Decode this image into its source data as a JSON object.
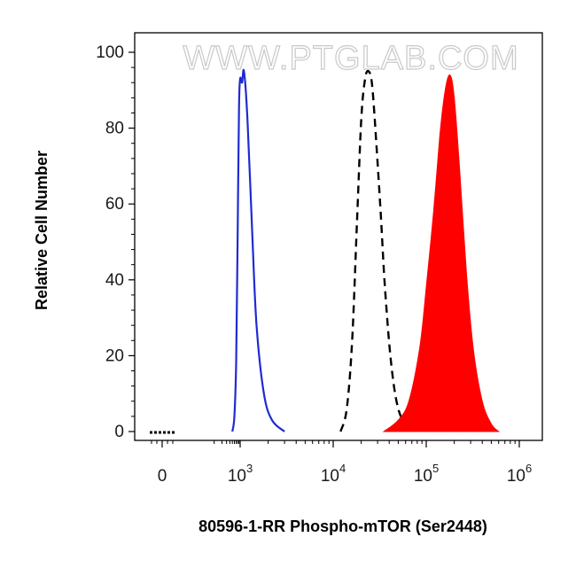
{
  "chart_data": {
    "type": "area",
    "watermark": "WWW.PTGLAB.COM",
    "xlabel": "80596-1-RR Phospho-mTOR (Ser2448)",
    "ylabel": "Relative Cell Number",
    "xscale": "biexponential",
    "ylim": [
      0,
      100
    ],
    "y_ticks": [
      "0",
      "20",
      "40",
      "60",
      "80",
      "100"
    ],
    "x_ticks": [
      {
        "value": 0,
        "base": "0",
        "exp": ""
      },
      {
        "value": 1000,
        "base": "10",
        "exp": "3"
      },
      {
        "value": 10000,
        "base": "10",
        "exp": "4"
      },
      {
        "value": 100000,
        "base": "10",
        "exp": "5"
      },
      {
        "value": 1000000,
        "base": "10",
        "exp": "6"
      }
    ],
    "grid": false,
    "legend": "none",
    "series": [
      {
        "style": "blue-solid-line",
        "color": "#1f2bd1",
        "x": [
          500,
          600,
          700,
          800,
          900,
          1000,
          1050,
          1100,
          1200,
          1350,
          1500,
          1800,
          2200,
          3000
        ],
        "y": [
          0,
          4,
          18,
          52,
          85,
          93,
          92,
          95,
          82,
          52,
          28,
          10,
          3,
          0
        ]
      },
      {
        "style": "black-dashed-line",
        "color": "#000000",
        "x": [
          12000,
          14000,
          16000,
          18000,
          20000,
          22000,
          24000,
          26000,
          28000,
          32000,
          36000,
          42000,
          50000,
          65000
        ],
        "y": [
          0,
          6,
          24,
          55,
          82,
          93,
          95,
          92,
          82,
          60,
          38,
          18,
          6,
          0
        ]
      },
      {
        "style": "red-filled-area",
        "color": "#ff0000",
        "x": [
          35000,
          50000,
          65000,
          85000,
          100000,
          120000,
          140000,
          160000,
          180000,
          200000,
          230000,
          270000,
          320000,
          400000,
          500000,
          600000
        ],
        "y": [
          0,
          3,
          8,
          22,
          38,
          58,
          78,
          90,
          94,
          88,
          68,
          42,
          22,
          8,
          2,
          0
        ]
      }
    ]
  }
}
